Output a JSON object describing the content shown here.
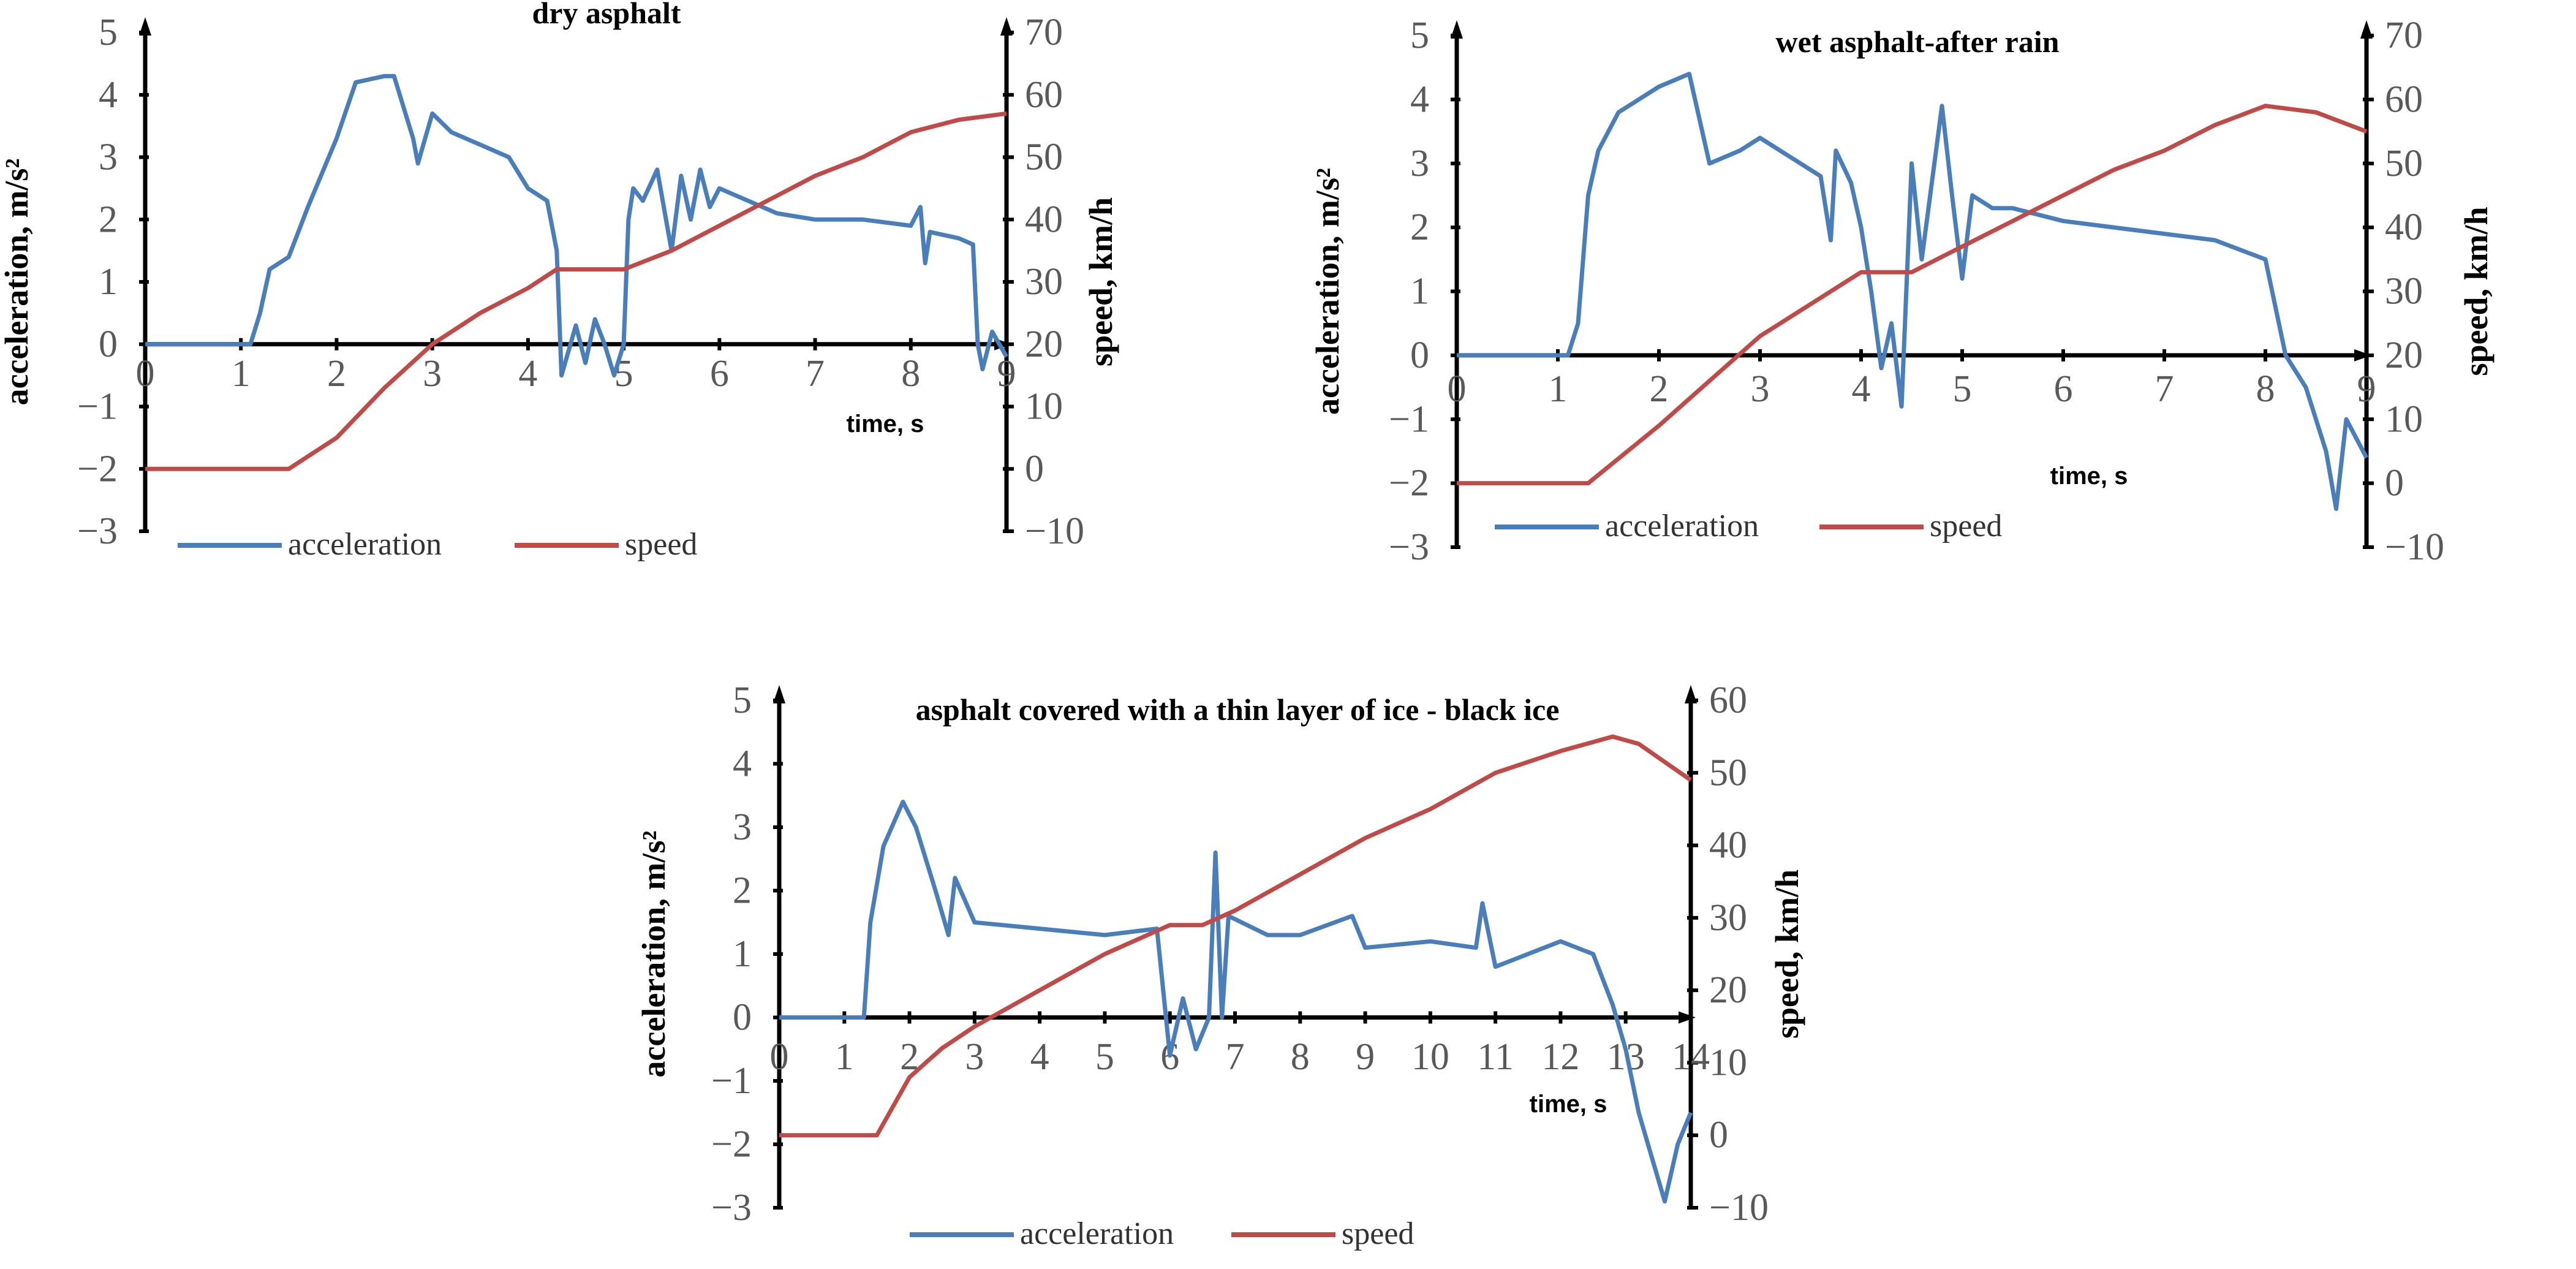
{
  "colors": {
    "acceleration": "#4a7ebb",
    "speed": "#be4b48",
    "axis": "#000000"
  },
  "chart_data": [
    {
      "type": "line",
      "title": "dry asphalt",
      "xlabel": "time, s",
      "ylabel": "acceleration, m/s²",
      "y2label": "speed, km/h",
      "xlim": [
        0,
        9
      ],
      "ylim": [
        -3,
        5
      ],
      "y2lim": [
        -10,
        70
      ],
      "xticks": [
        0,
        1,
        2,
        3,
        4,
        5,
        6,
        7,
        8,
        9
      ],
      "yticks": [
        -3,
        -2,
        -1,
        0,
        1,
        2,
        3,
        4,
        5
      ],
      "y2ticks": [
        -10,
        0,
        10,
        20,
        30,
        40,
        50,
        60,
        70
      ],
      "legend": {
        "position": "bottom",
        "entries": [
          "acceleration",
          "speed"
        ]
      },
      "series": [
        {
          "name": "acceleration",
          "axis": "left",
          "x": [
            0,
            1.1,
            1.2,
            1.3,
            1.5,
            1.7,
            2.0,
            2.2,
            2.5,
            2.6,
            2.8,
            2.85,
            3.0,
            3.2,
            3.5,
            3.8,
            4.0,
            4.2,
            4.3,
            4.35,
            4.5,
            4.6,
            4.7,
            4.8,
            4.9,
            5.0,
            5.05,
            5.1,
            5.2,
            5.35,
            5.5,
            5.6,
            5.7,
            5.8,
            5.9,
            6.0,
            6.3,
            6.6,
            7.0,
            7.5,
            8.0,
            8.1,
            8.15,
            8.2,
            8.5,
            8.65,
            8.7,
            8.75,
            8.85,
            9.0
          ],
          "y": [
            0,
            0,
            0.5,
            1.2,
            1.4,
            2.2,
            3.3,
            4.2,
            4.3,
            4.3,
            3.3,
            2.9,
            3.7,
            3.4,
            3.2,
            3.0,
            2.5,
            2.3,
            1.5,
            -0.5,
            0.3,
            -0.3,
            0.4,
            0,
            -0.5,
            0,
            2.0,
            2.5,
            2.3,
            2.8,
            1.5,
            2.7,
            2.0,
            2.8,
            2.2,
            2.5,
            2.3,
            2.1,
            2.0,
            2.0,
            1.9,
            2.2,
            1.3,
            1.8,
            1.7,
            1.6,
            0,
            -0.4,
            0.2,
            -0.2
          ]
        },
        {
          "name": "speed",
          "axis": "right",
          "x": [
            0,
            1.5,
            2,
            2.5,
            3,
            3.5,
            4,
            4.3,
            5,
            5.5,
            6,
            6.5,
            7,
            7.5,
            8,
            8.5,
            9
          ],
          "y": [
            0,
            0,
            5,
            13,
            20,
            25,
            29,
            32,
            32,
            35,
            39,
            43,
            47,
            50,
            54,
            56,
            57
          ]
        }
      ]
    },
    {
      "type": "line",
      "title": "wet asphalt-after rain",
      "xlabel": "time, s",
      "ylabel": "acceleration, m/s²",
      "y2label": "speed, km/h",
      "xlim": [
        0,
        9
      ],
      "ylim": [
        -3,
        5
      ],
      "y2lim": [
        -10,
        70
      ],
      "xticks": [
        0,
        1,
        2,
        3,
        4,
        5,
        6,
        7,
        8,
        9
      ],
      "yticks": [
        -3,
        -2,
        -1,
        0,
        1,
        2,
        3,
        4,
        5
      ],
      "y2ticks": [
        -10,
        0,
        10,
        20,
        30,
        40,
        50,
        60,
        70
      ],
      "legend": {
        "position": "bottom",
        "entries": [
          "acceleration",
          "speed"
        ]
      },
      "series": [
        {
          "name": "acceleration",
          "axis": "left",
          "x": [
            0,
            1.1,
            1.2,
            1.3,
            1.4,
            1.6,
            2.0,
            2.3,
            2.5,
            2.8,
            3.0,
            3.3,
            3.6,
            3.7,
            3.75,
            3.9,
            4.0,
            4.1,
            4.2,
            4.3,
            4.4,
            4.5,
            4.6,
            4.8,
            4.9,
            5.0,
            5.1,
            5.3,
            5.5,
            6.0,
            7.0,
            7.5,
            8.0,
            8.2,
            8.4,
            8.6,
            8.7,
            8.8,
            9.0
          ],
          "y": [
            0,
            0,
            0.5,
            2.5,
            3.2,
            3.8,
            4.2,
            4.4,
            3.0,
            3.2,
            3.4,
            3.1,
            2.8,
            1.8,
            3.2,
            2.7,
            2.0,
            1.0,
            -0.2,
            0.5,
            -0.8,
            3.0,
            1.5,
            3.9,
            2.5,
            1.2,
            2.5,
            2.3,
            2.3,
            2.1,
            1.9,
            1.8,
            1.5,
            0,
            -0.5,
            -1.5,
            -2.4,
            -1.0,
            -1.6
          ]
        },
        {
          "name": "speed",
          "axis": "right",
          "x": [
            0,
            1.3,
            2,
            2.5,
            3,
            3.5,
            4,
            4.5,
            5,
            5.5,
            6,
            6.5,
            7,
            7.5,
            8,
            8.5,
            9
          ],
          "y": [
            0,
            0,
            9,
            16,
            23,
            28,
            33,
            33,
            37,
            41,
            45,
            49,
            52,
            56,
            59,
            58,
            55
          ]
        }
      ]
    },
    {
      "type": "line",
      "title": "asphalt covered with a thin layer of ice - black ice",
      "xlabel": "time, s",
      "ylabel": "acceleration, m/s²",
      "y2label": "speed, km/h",
      "xlim": [
        0,
        14
      ],
      "ylim": [
        -3,
        5
      ],
      "y2lim": [
        -10,
        60
      ],
      "xticks": [
        0,
        1,
        2,
        3,
        4,
        5,
        6,
        7,
        8,
        9,
        10,
        11,
        12,
        13,
        14
      ],
      "yticks": [
        -3,
        -2,
        -1,
        0,
        1,
        2,
        3,
        4,
        5
      ],
      "y2ticks": [
        -10,
        0,
        10,
        20,
        30,
        40,
        50,
        60
      ],
      "legend": {
        "position": "bottom",
        "entries": [
          "acceleration",
          "speed"
        ]
      },
      "series": [
        {
          "name": "acceleration",
          "axis": "left",
          "x": [
            0,
            1.3,
            1.4,
            1.6,
            1.9,
            2.1,
            2.4,
            2.6,
            2.7,
            3,
            4,
            5,
            5.8,
            6.0,
            6.2,
            6.4,
            6.6,
            6.7,
            6.8,
            6.9,
            7.5,
            8,
            8.8,
            9,
            10,
            10.7,
            10.8,
            11,
            12,
            12.5,
            12.8,
            13,
            13.2,
            13.4,
            13.6,
            13.8,
            14
          ],
          "y": [
            0,
            0,
            1.5,
            2.7,
            3.4,
            3.0,
            2.0,
            1.3,
            2.2,
            1.5,
            1.4,
            1.3,
            1.4,
            -0.6,
            0.3,
            -0.5,
            0,
            2.6,
            0,
            1.6,
            1.3,
            1.3,
            1.6,
            1.1,
            1.2,
            1.1,
            1.8,
            0.8,
            1.2,
            1.0,
            0.2,
            -0.5,
            -1.5,
            -2.2,
            -2.9,
            -2.0,
            -1.5
          ]
        },
        {
          "name": "speed",
          "axis": "right",
          "x": [
            0,
            1.5,
            2,
            2.5,
            3,
            4,
            5,
            6,
            6.5,
            7,
            8,
            9,
            10,
            11,
            12,
            12.8,
            13.2,
            14
          ],
          "y": [
            0,
            0,
            8,
            12,
            15,
            20,
            25,
            29,
            29,
            31,
            36,
            41,
            45,
            50,
            53,
            55,
            54,
            49
          ]
        }
      ]
    }
  ]
}
